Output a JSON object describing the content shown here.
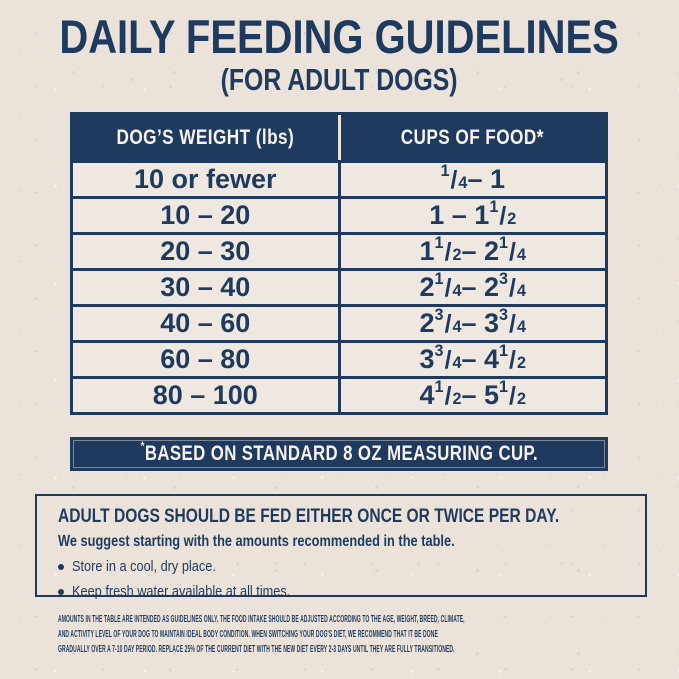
{
  "page": {
    "title": "DAILY FEEDING GUIDELINES",
    "subtitle": "(FOR ADULT DOGS)"
  },
  "table": {
    "columns": [
      "DOG’S WEIGHT (lbs)",
      "CUPS OF FOOD*"
    ],
    "rows": [
      {
        "weight": "10 or fewer",
        "cups": "1/4 – 1"
      },
      {
        "weight": "10 – 20",
        "cups": "1 – 1 1/2"
      },
      {
        "weight": "20 – 30",
        "cups": "1 1/2 – 2 1/4"
      },
      {
        "weight": "30 – 40",
        "cups": "2 1/4 – 2 3/4"
      },
      {
        "weight": "40 – 60",
        "cups": "2 3/4 – 3 3/4"
      },
      {
        "weight": "60 – 80",
        "cups": "3 3/4 – 4 1/2"
      },
      {
        "weight": "80 – 100",
        "cups": "4 1/2 – 5 1/2"
      }
    ],
    "footnote_mark": "*",
    "footnote_text": "BASED ON STANDARD 8 OZ MEASURING CUP."
  },
  "info_box": {
    "heading": "ADULT DOGS SHOULD BE FED EITHER ONCE OR TWICE PER DAY.",
    "subheading": "We suggest starting with the amounts recommended in the table.",
    "bullets": [
      "Store in a cool, dry place.",
      "Keep fresh water available at all times."
    ]
  },
  "disclaimer": {
    "lines": [
      "AMOUNTS IN THE TABLE ARE INTENDED AS GUIDELINES ONLY. THE FOOD INTAKE SHOULD BE ADJUSTED ACCORDING TO THE AGE, WEIGHT, BREED, CLIMATE,",
      "AND ACTIVITY LEVEL OF YOUR DOG TO MAINTAIN IDEAL BODY CONDITION. WHEN SWITCHING YOUR DOG'S DIET, WE RECOMMEND THAT IT BE DONE",
      "GRADUALLY OVER A 7-10 DAY PERIOD. REPLACE 25% OF THE CURRENT DIET WITH THE NEW DIET EVERY 2-3 DAYS UNTIL THEY ARE FULLY TRANSITIONED."
    ]
  },
  "colors": {
    "navy": "#1e3a5e",
    "cream": "#ebe3da",
    "row_cream": "#efe8e0",
    "text_light": "#f7f2ea"
  }
}
